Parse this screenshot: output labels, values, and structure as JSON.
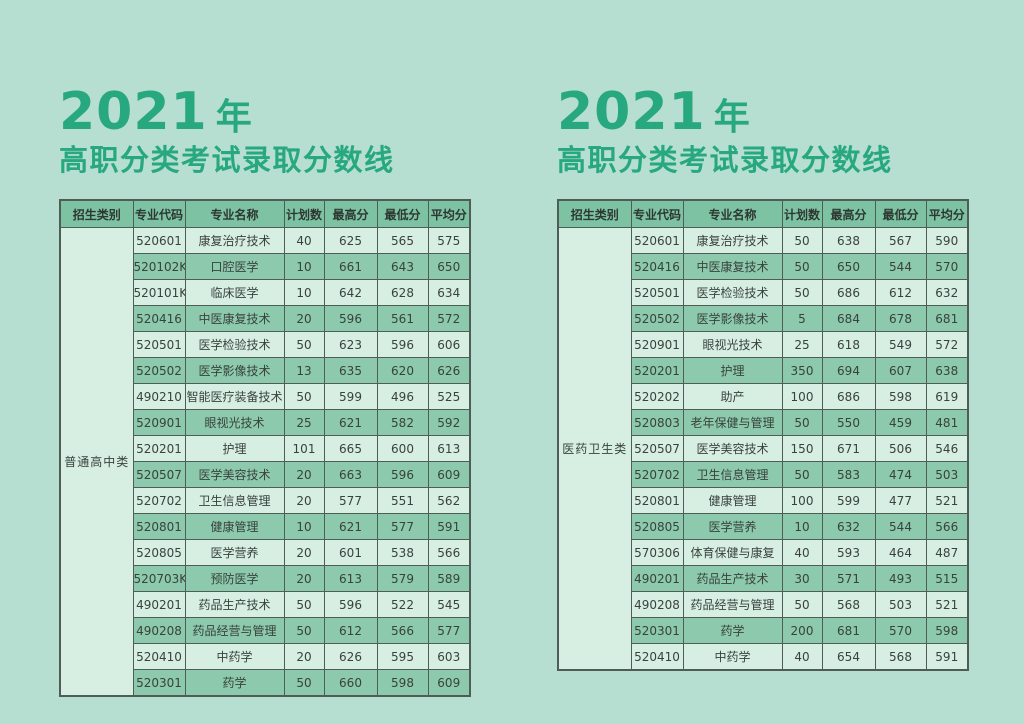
{
  "colors": {
    "page_background": "#b6ded1",
    "title_accent": "#27a87f",
    "table_header_bg": "#7ec2a4",
    "row_light_bg": "#d7eee3",
    "row_dark_bg": "#8cc9ad",
    "table_border": "#4e5d55",
    "text": "#39423c"
  },
  "columns": [
    "招生类别",
    "专业代码",
    "专业名称",
    "计划数",
    "最高分",
    "最低分",
    "平均分"
  ],
  "tables": [
    {
      "title_year": "2021",
      "title_suffix": "年",
      "subtitle": "高职分类考试录取分数线",
      "category": "普通高中类",
      "rows": [
        [
          "520601",
          "康复治疗技术",
          "40",
          "625",
          "565",
          "575"
        ],
        [
          "520102K",
          "口腔医学",
          "10",
          "661",
          "643",
          "650"
        ],
        [
          "520101K",
          "临床医学",
          "10",
          "642",
          "628",
          "634"
        ],
        [
          "520416",
          "中医康复技术",
          "20",
          "596",
          "561",
          "572"
        ],
        [
          "520501",
          "医学检验技术",
          "50",
          "623",
          "596",
          "606"
        ],
        [
          "520502",
          "医学影像技术",
          "13",
          "635",
          "620",
          "626"
        ],
        [
          "490210",
          "智能医疗装备技术",
          "50",
          "599",
          "496",
          "525"
        ],
        [
          "520901",
          "眼视光技术",
          "25",
          "621",
          "582",
          "592"
        ],
        [
          "520201",
          "护理",
          "101",
          "665",
          "600",
          "613"
        ],
        [
          "520507",
          "医学美容技术",
          "20",
          "663",
          "596",
          "609"
        ],
        [
          "520702",
          "卫生信息管理",
          "20",
          "577",
          "551",
          "562"
        ],
        [
          "520801",
          "健康管理",
          "10",
          "621",
          "577",
          "591"
        ],
        [
          "520805",
          "医学营养",
          "20",
          "601",
          "538",
          "566"
        ],
        [
          "520703K",
          "预防医学",
          "20",
          "613",
          "579",
          "589"
        ],
        [
          "490201",
          "药品生产技术",
          "50",
          "596",
          "522",
          "545"
        ],
        [
          "490208",
          "药品经营与管理",
          "50",
          "612",
          "566",
          "577"
        ],
        [
          "520410",
          "中药学",
          "20",
          "626",
          "595",
          "603"
        ],
        [
          "520301",
          "药学",
          "50",
          "660",
          "598",
          "609"
        ]
      ]
    },
    {
      "title_year": "2021",
      "title_suffix": "年",
      "subtitle": "高职分类考试录取分数线",
      "category": "医药卫生类",
      "rows": [
        [
          "520601",
          "康复治疗技术",
          "50",
          "638",
          "567",
          "590"
        ],
        [
          "520416",
          "中医康复技术",
          "50",
          "650",
          "544",
          "570"
        ],
        [
          "520501",
          "医学检验技术",
          "50",
          "686",
          "612",
          "632"
        ],
        [
          "520502",
          "医学影像技术",
          "5",
          "684",
          "678",
          "681"
        ],
        [
          "520901",
          "眼视光技术",
          "25",
          "618",
          "549",
          "572"
        ],
        [
          "520201",
          "护理",
          "350",
          "694",
          "607",
          "638"
        ],
        [
          "520202",
          "助产",
          "100",
          "686",
          "598",
          "619"
        ],
        [
          "520803",
          "老年保健与管理",
          "50",
          "550",
          "459",
          "481"
        ],
        [
          "520507",
          "医学美容技术",
          "150",
          "671",
          "506",
          "546"
        ],
        [
          "520702",
          "卫生信息管理",
          "50",
          "583",
          "474",
          "503"
        ],
        [
          "520801",
          "健康管理",
          "100",
          "599",
          "477",
          "521"
        ],
        [
          "520805",
          "医学营养",
          "10",
          "632",
          "544",
          "566"
        ],
        [
          "570306",
          "体育保健与康复",
          "40",
          "593",
          "464",
          "487"
        ],
        [
          "490201",
          "药品生产技术",
          "30",
          "571",
          "493",
          "515"
        ],
        [
          "490208",
          "药品经营与管理",
          "50",
          "568",
          "503",
          "521"
        ],
        [
          "520301",
          "药学",
          "200",
          "681",
          "570",
          "598"
        ],
        [
          "520410",
          "中药学",
          "40",
          "654",
          "568",
          "591"
        ]
      ]
    }
  ]
}
